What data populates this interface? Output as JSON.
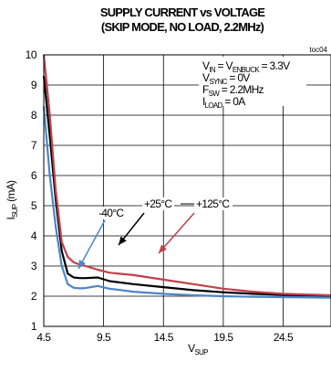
{
  "chart_data": {
    "type": "line",
    "title": "SUPPLY CURRENT vs VOLTAGE",
    "subtitle": "(SKIP MODE, NO LOAD, 2.2MHz)",
    "code": "toc04",
    "xlabel": {
      "main": "V",
      "sub": "SUP"
    },
    "ylabel": {
      "main": "I",
      "sub": "SUP",
      "unit": " (mA)"
    },
    "xlim": [
      4.5,
      28.5
    ],
    "ylim": [
      1,
      10
    ],
    "xticks": [
      4.5,
      9.5,
      14.5,
      19.5,
      24.5
    ],
    "xtick_labels": [
      "4.5",
      "9.5",
      "14.5",
      "19.5",
      "24.5"
    ],
    "yticks": [
      1,
      2,
      3,
      4,
      5,
      6,
      7,
      8,
      9,
      10
    ],
    "ytick_labels": [
      "1",
      "2",
      "3",
      "4",
      "5",
      "6",
      "7",
      "8",
      "9",
      "10"
    ],
    "grid": true,
    "conditions": [
      {
        "main": "V",
        "sub": "IN",
        "mid": " = V",
        "sub2": "ENBUCK",
        "rest": " = 3.3V"
      },
      {
        "main": "V",
        "sub": "SYNC",
        "rest": " = 0V"
      },
      {
        "main": "F",
        "sub": "SW",
        "rest": " = 2.2MHz"
      },
      {
        "main": "I",
        "sub": "LOAD",
        "rest": " = 0A"
      }
    ],
    "series": [
      {
        "name": "-40°C",
        "color": "#4a86c8",
        "x": [
          4.5,
          5.0,
          5.5,
          6.0,
          6.5,
          7.0,
          7.5,
          8.0,
          9.0,
          10.0,
          12.0,
          14.5,
          17.0,
          19.5,
          22.0,
          24.5,
          28.5
        ],
        "y": [
          8.3,
          6.0,
          4.3,
          3.0,
          2.4,
          2.28,
          2.26,
          2.27,
          2.34,
          2.25,
          2.15,
          2.08,
          2.03,
          2.0,
          1.98,
          1.97,
          1.95
        ]
      },
      {
        "name": "+25°C",
        "color": "#000000",
        "x": [
          4.5,
          5.0,
          5.5,
          6.0,
          6.5,
          7.0,
          7.5,
          8.0,
          9.0,
          10.0,
          12.0,
          14.5,
          17.0,
          19.5,
          22.0,
          24.5,
          28.5
        ],
        "y": [
          9.3,
          7.3,
          5.2,
          3.5,
          2.75,
          2.62,
          2.6,
          2.6,
          2.62,
          2.5,
          2.4,
          2.3,
          2.2,
          2.13,
          2.08,
          2.05,
          2.02
        ]
      },
      {
        "name": "+125°C",
        "color": "#c0404a",
        "x": [
          4.5,
          5.0,
          5.5,
          6.0,
          6.5,
          7.0,
          7.5,
          8.0,
          9.0,
          10.0,
          11.0,
          12.0,
          14.5,
          17.0,
          19.5,
          22.0,
          24.5,
          28.5
        ],
        "y": [
          10.0,
          8.0,
          5.5,
          3.8,
          3.3,
          3.12,
          3.05,
          3.0,
          2.88,
          2.78,
          2.74,
          2.7,
          2.55,
          2.4,
          2.25,
          2.15,
          2.08,
          2.03
        ]
      }
    ],
    "annotations": [
      {
        "text": "-40°C",
        "color": "#4a86c8"
      },
      {
        "text": "+25°C",
        "color": "#000000"
      },
      {
        "text": "+125°C",
        "color": "#c0404a"
      }
    ]
  }
}
